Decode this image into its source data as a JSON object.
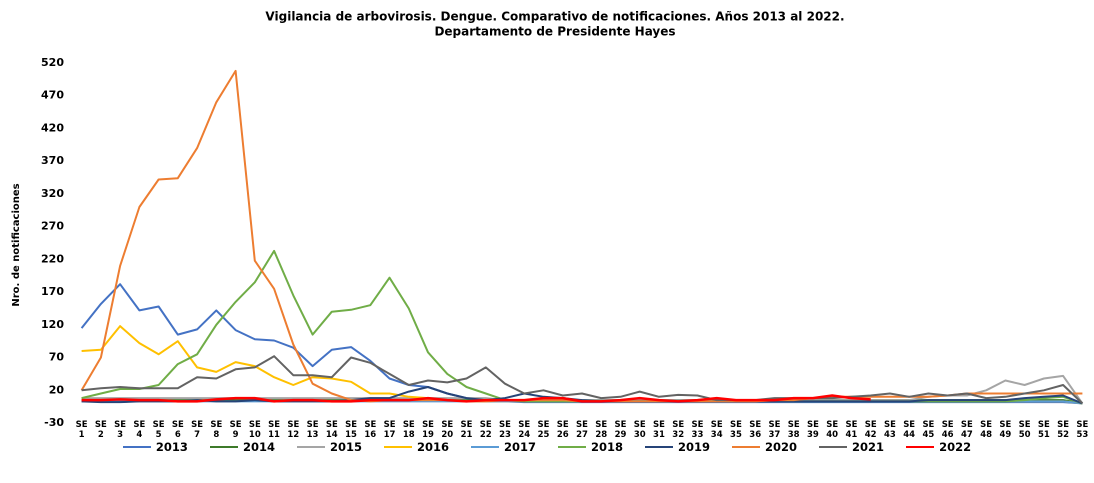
{
  "chart_data": {
    "type": "line",
    "title": "Vigilancia de arbovirosis. Dengue. Comparativo de notificaciones. Años 2013 al 2022.",
    "subtitle": "Departamento de Presidente Hayes",
    "y_label": "Nro. de notificaciones",
    "categories": [
      "SE 1",
      "SE 2",
      "SE 3",
      "SE 4",
      "SE 5",
      "SE 6",
      "SE 7",
      "SE 8",
      "SE 9",
      "SE 10",
      "SE 11",
      "SE 12",
      "SE 13",
      "SE 14",
      "SE 15",
      "SE 16",
      "SE 17",
      "SE 18",
      "SE 19",
      "SE 20",
      "SE 21",
      "SE 22",
      "SE 23",
      "SE 24",
      "SE 25",
      "SE 26",
      "SE 27",
      "SE 28",
      "SE 29",
      "SE 30",
      "SE 31",
      "SE 32",
      "SE 33",
      "SE 34",
      "SE 35",
      "SE 36",
      "SE 37",
      "SE 38",
      "SE 39",
      "SE 40",
      "SE 41",
      "SE 42",
      "SE 43",
      "SE 44",
      "SE 45",
      "SE 46",
      "SE 47",
      "SE 48",
      "SE 49",
      "SE 50",
      "SE 51",
      "SE 52",
      "SE 53"
    ],
    "ylim": [
      -30,
      520
    ],
    "yticks": [
      -30,
      20,
      70,
      120,
      170,
      220,
      270,
      320,
      370,
      420,
      470,
      520
    ],
    "grid": false,
    "legend": "bottom",
    "series": [
      {
        "name": "2013",
        "color": "#4472c4",
        "values": [
          115,
          152,
          182,
          142,
          148,
          105,
          113,
          142,
          112,
          98,
          96,
          85,
          57,
          82,
          86,
          65,
          38,
          28,
          25,
          15,
          8,
          3,
          3,
          2,
          2,
          2,
          2,
          2,
          2,
          2,
          2,
          2,
          2,
          2,
          2,
          2,
          2,
          2,
          2,
          2,
          2,
          2,
          2,
          2,
          2,
          2,
          2,
          2,
          2,
          2,
          2,
          2,
          0
        ]
      },
      {
        "name": "2014",
        "color": "#3d7a2a",
        "values": [
          5,
          5,
          5,
          5,
          5,
          5,
          5,
          5,
          5,
          5,
          5,
          5,
          5,
          5,
          5,
          5,
          5,
          5,
          5,
          5,
          5,
          5,
          5,
          5,
          5,
          5,
          5,
          5,
          5,
          5,
          5,
          5,
          5,
          5,
          5,
          5,
          5,
          5,
          5,
          5,
          5,
          5,
          5,
          5,
          5,
          5,
          5,
          5,
          5,
          5,
          5,
          5,
          0
        ]
      },
      {
        "name": "2015",
        "color": "#a5a5a5",
        "values": [
          8,
          8,
          8,
          8,
          8,
          8,
          8,
          8,
          8,
          8,
          8,
          8,
          8,
          8,
          8,
          8,
          8,
          8,
          8,
          8,
          8,
          8,
          5,
          5,
          5,
          5,
          5,
          5,
          5,
          5,
          5,
          5,
          5,
          5,
          5,
          5,
          5,
          5,
          5,
          5,
          5,
          5,
          5,
          5,
          10,
          12,
          12,
          20,
          35,
          28,
          38,
          42,
          0
        ]
      },
      {
        "name": "2016",
        "color": "#ffc000",
        "values": [
          80,
          82,
          118,
          92,
          75,
          95,
          55,
          48,
          63,
          57,
          40,
          28,
          40,
          38,
          33,
          15,
          15,
          10,
          8,
          5,
          3,
          3,
          3,
          3,
          3,
          3,
          3,
          3,
          3,
          3,
          3,
          3,
          3,
          3,
          3,
          3,
          3,
          3,
          3,
          3,
          3,
          3,
          3,
          3,
          3,
          3,
          3,
          3,
          3,
          3,
          3,
          3,
          0
        ]
      },
      {
        "name": "2017",
        "color": "#5b9bd5",
        "values": [
          3,
          3,
          3,
          3,
          3,
          3,
          3,
          3,
          3,
          3,
          3,
          3,
          3,
          3,
          3,
          3,
          3,
          3,
          3,
          3,
          3,
          3,
          3,
          3,
          3,
          3,
          3,
          3,
          3,
          3,
          3,
          3,
          3,
          3,
          3,
          3,
          3,
          3,
          3,
          3,
          3,
          3,
          3,
          3,
          3,
          3,
          3,
          3,
          3,
          3,
          3,
          3,
          0
        ]
      },
      {
        "name": "2018",
        "color": "#70ad47",
        "values": [
          8,
          15,
          22,
          22,
          28,
          60,
          75,
          120,
          155,
          185,
          233,
          165,
          105,
          140,
          143,
          150,
          192,
          145,
          78,
          45,
          25,
          15,
          5,
          3,
          3,
          3,
          3,
          3,
          3,
          3,
          3,
          3,
          3,
          3,
          3,
          3,
          3,
          3,
          3,
          3,
          3,
          3,
          3,
          3,
          3,
          3,
          3,
          3,
          3,
          5,
          8,
          10,
          0
        ]
      },
      {
        "name": "2019",
        "color": "#264478",
        "values": [
          3,
          2,
          2,
          3,
          3,
          3,
          5,
          3,
          3,
          5,
          3,
          3,
          3,
          3,
          5,
          8,
          8,
          18,
          25,
          15,
          8,
          5,
          8,
          15,
          10,
          8,
          5,
          3,
          3,
          3,
          3,
          3,
          3,
          3,
          3,
          3,
          3,
          3,
          3,
          3,
          3,
          3,
          3,
          3,
          5,
          5,
          5,
          5,
          5,
          8,
          10,
          12,
          0
        ]
      },
      {
        "name": "2020",
        "color": "#ed7d31",
        "values": [
          20,
          70,
          210,
          300,
          342,
          344,
          390,
          460,
          508,
          218,
          175,
          90,
          30,
          15,
          5,
          3,
          5,
          5,
          5,
          5,
          3,
          3,
          5,
          5,
          5,
          5,
          3,
          3,
          3,
          3,
          3,
          3,
          3,
          3,
          3,
          3,
          5,
          5,
          8,
          10,
          10,
          10,
          10,
          10,
          10,
          12,
          15,
          15,
          15,
          15,
          15,
          15,
          15
        ]
      },
      {
        "name": "2021",
        "color": "#636363",
        "values": [
          20,
          23,
          25,
          23,
          23,
          23,
          40,
          38,
          52,
          55,
          72,
          43,
          43,
          40,
          70,
          62,
          45,
          28,
          35,
          32,
          38,
          55,
          30,
          15,
          20,
          12,
          15,
          8,
          10,
          18,
          10,
          13,
          12,
          5,
          5,
          5,
          8,
          8,
          8,
          8,
          10,
          12,
          15,
          10,
          15,
          12,
          15,
          8,
          10,
          15,
          20,
          28,
          0
        ]
      },
      {
        "name": "2022",
        "color": "#ff0000",
        "values": [
          5,
          5,
          6,
          5,
          5,
          3,
          3,
          6,
          8,
          8,
          3,
          5,
          5,
          3,
          3,
          5,
          5,
          5,
          8,
          5,
          3,
          5,
          5,
          5,
          8,
          8,
          3,
          3,
          5,
          8,
          5,
          3,
          5,
          8,
          5,
          5,
          5,
          8,
          8,
          12,
          8,
          6,
          null,
          null,
          null,
          null,
          null,
          null,
          null,
          null,
          null,
          null,
          null
        ]
      }
    ]
  }
}
